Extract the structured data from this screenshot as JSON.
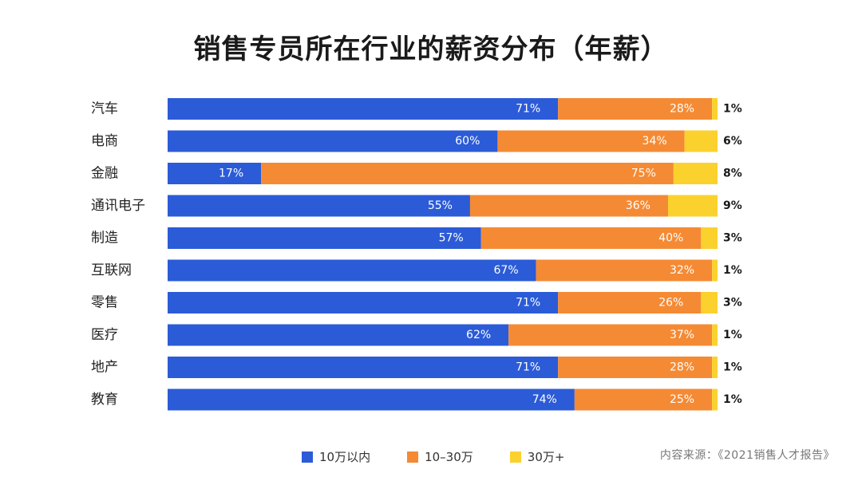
{
  "chart_data": {
    "type": "bar",
    "orientation": "horizontal",
    "stacked": true,
    "title": "销售专员所在行业的薪资分布（年薪）",
    "categories": [
      "汽车",
      "电商",
      "金融",
      "通讯电子",
      "制造",
      "互联网",
      "零售",
      "医疗",
      "地产",
      "教育"
    ],
    "series": [
      {
        "name": "10万以内",
        "color": "#2b5bd7",
        "values": [
          71,
          60,
          17,
          55,
          57,
          67,
          71,
          62,
          71,
          74
        ]
      },
      {
        "name": "10–30万",
        "color": "#f58a34",
        "values": [
          28,
          34,
          75,
          36,
          40,
          32,
          26,
          37,
          28,
          25
        ]
      },
      {
        "name": "30万+",
        "color": "#fbd12d",
        "values": [
          1,
          6,
          8,
          9,
          3,
          1,
          3,
          1,
          1,
          1
        ]
      }
    ],
    "xlim": [
      0,
      100
    ],
    "legend": "bottom",
    "grid": false
  },
  "source": "内容来源：《2021销售人才报告》"
}
